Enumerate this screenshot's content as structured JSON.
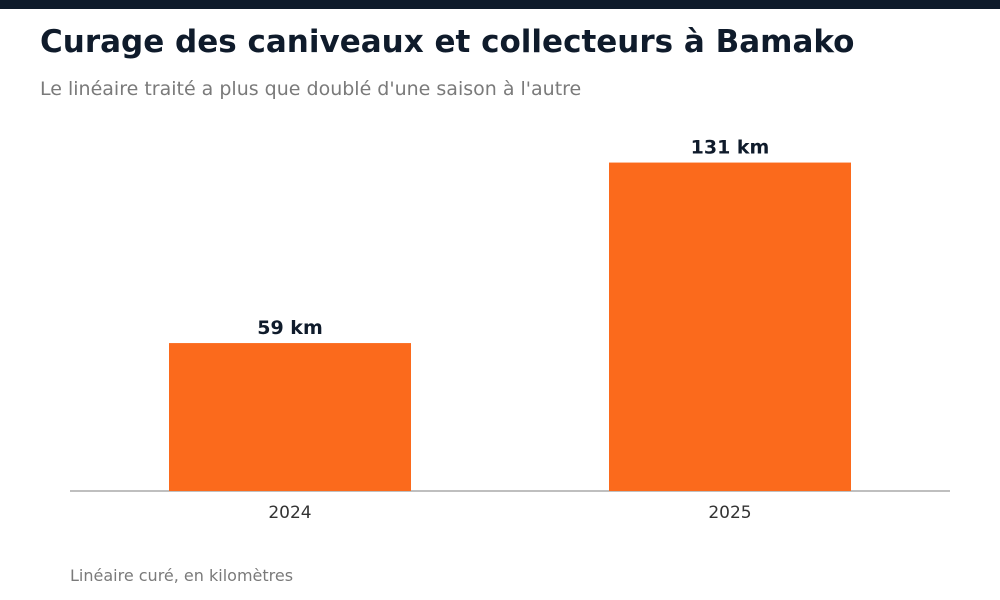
{
  "header": {
    "title": "Curage des caniveaux et collecteurs à Bamako",
    "subtitle": "Le linéaire traité a plus que doublé d'une saison à l'autre"
  },
  "footer": {
    "note": "Linéaire curé, en kilomètres"
  },
  "colors": {
    "bar": "#fb6a1c",
    "header_bar": "#0f1b2b",
    "value_label": "#0f1b2b",
    "axis": "#aaaaaa",
    "tick_label": "#333333"
  },
  "chart_data": {
    "type": "bar",
    "categories": [
      "2024",
      "2025"
    ],
    "values": [
      59,
      131
    ],
    "value_labels": [
      "59 km",
      "131 km"
    ],
    "unit": "km",
    "ylim": [
      0,
      140
    ],
    "grid": false
  }
}
